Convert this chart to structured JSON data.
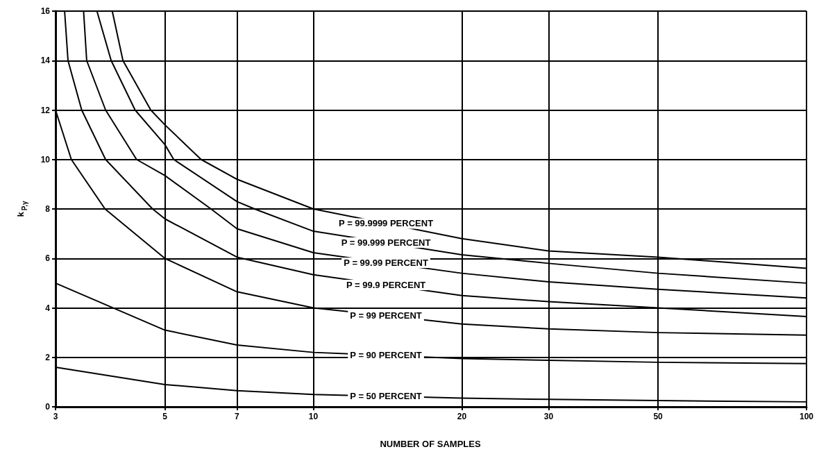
{
  "chart_data": {
    "type": "line",
    "xlabel": "NUMBER OF SAMPLES",
    "ylabel": "k$_{P,γ}$",
    "log": "x",
    "xlim": [
      3,
      100
    ],
    "xticks": [
      3,
      5,
      7,
      10,
      20,
      30,
      50,
      100
    ],
    "ylim": [
      0,
      16
    ],
    "yticks": [
      0,
      2,
      4,
      6,
      8,
      10,
      12,
      14,
      16
    ],
    "grid": true,
    "marker": "none",
    "line_style": "solid",
    "legend": false,
    "series": [
      {
        "name": "P = 99.9999 PERCENT",
        "color": "#000000",
        "x": [
          3.91,
          4.11,
          4.68,
          5,
          5.92,
          7,
          10,
          20,
          30,
          50,
          100
        ],
        "values": [
          16,
          14,
          12,
          11.4,
          10,
          9.2,
          8.0,
          6.8,
          6.3,
          6.05,
          5.6
        ]
      },
      {
        "name": "P = 99.999 PERCENT",
        "color": "#000000",
        "x": [
          3.64,
          3.89,
          4.35,
          5,
          5.21,
          7,
          7.6,
          10,
          20,
          30,
          50,
          100
        ],
        "values": [
          16,
          14,
          12,
          10.6,
          10,
          8.3,
          8,
          7.1,
          6.15,
          5.8,
          5.4,
          5.0
        ]
      },
      {
        "name": "P = 99.99 PERCENT",
        "color": "#000000",
        "x": [
          3.42,
          3.47,
          3.79,
          4.38,
          5,
          6.2,
          7,
          10,
          20,
          30,
          50,
          100
        ],
        "values": [
          16,
          14,
          12,
          10,
          9.35,
          8,
          7.2,
          6.23,
          5.4,
          5.05,
          4.75,
          4.4
        ]
      },
      {
        "name": "P = 99.9 PERCENT",
        "color": "#000000",
        "x": [
          3.13,
          3.18,
          3.39,
          3.79,
          4.72,
          5,
          7,
          10,
          20,
          30,
          50,
          100
        ],
        "values": [
          16,
          14,
          12,
          10,
          8,
          7.6,
          6.05,
          5.34,
          4.5,
          4.25,
          4.0,
          3.65
        ]
      },
      {
        "name": "P = 99 PERCENT",
        "color": "#000000",
        "x": [
          3,
          3.23,
          3.78,
          5,
          7,
          10,
          20,
          30,
          50,
          100
        ],
        "values": [
          12,
          10,
          8,
          6.0,
          4.65,
          4.0,
          3.35,
          3.15,
          3.0,
          2.9
        ]
      },
      {
        "name": "P = 90 PERCENT",
        "color": "#000000",
        "x": [
          3,
          5,
          7,
          10,
          20,
          30,
          50,
          100
        ],
        "values": [
          5.0,
          3.1,
          2.5,
          2.2,
          1.95,
          1.88,
          1.8,
          1.75
        ]
      },
      {
        "name": "P = 50 PERCENT",
        "color": "#000000",
        "x": [
          3,
          5,
          7,
          10,
          20,
          30,
          50,
          100
        ],
        "values": [
          1.6,
          0.9,
          0.65,
          0.5,
          0.35,
          0.3,
          0.25,
          0.2
        ]
      }
    ]
  }
}
